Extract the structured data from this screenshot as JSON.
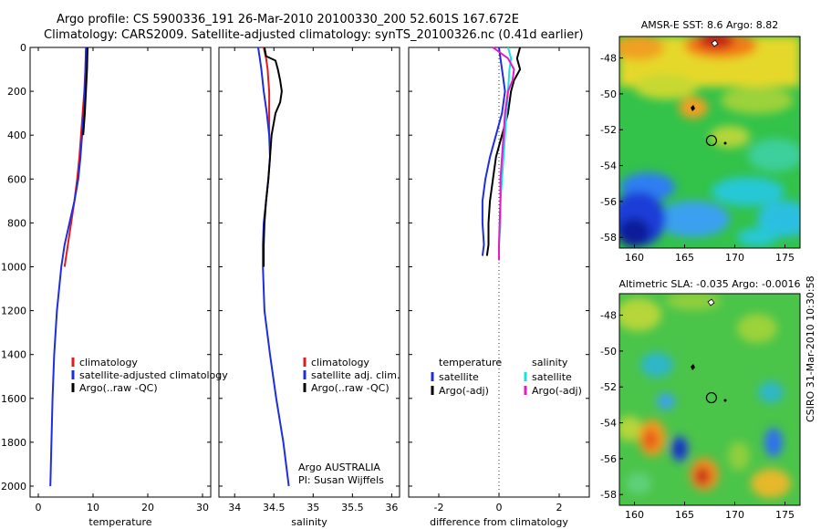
{
  "header": {
    "line1": "Argo profile: CS 5900336_191 26-Mar-2010 20100330_200 52.601S 167.672E",
    "line2": "Climatology: CARS2009. Satellite-adjusted climatology: synTS_20100326.nc (0.41d earlier)"
  },
  "chart_data": [
    {
      "type": "line",
      "name": "temperature",
      "xlabel": "temperature",
      "ylabel": "",
      "xlim": [
        -1.5,
        31.5
      ],
      "ylim": [
        2050,
        0
      ],
      "xticks": [
        0,
        10,
        20,
        30
      ],
      "yticks": [
        0,
        200,
        400,
        600,
        800,
        1000,
        1200,
        1400,
        1600,
        1800,
        2000
      ],
      "legend": [
        {
          "label": "climatology",
          "color": "#e41a1c"
        },
        {
          "label": "satellite-adjusted climatology",
          "color": "#1f2de0"
        },
        {
          "label": "Argo(..raw -QC)",
          "color": "#000000"
        }
      ],
      "series": [
        {
          "name": "climatology",
          "color": "#e41a1c",
          "depth": [
            0,
            100,
            200,
            300,
            400,
            500,
            600,
            700,
            800,
            900,
            1000
          ],
          "values": [
            8.8,
            8.6,
            8.4,
            8.1,
            7.8,
            7.5,
            7.1,
            6.6,
            6.0,
            5.4,
            4.8
          ]
        },
        {
          "name": "satellite-adjusted",
          "color": "#1f2de0",
          "depth": [
            0,
            100,
            200,
            300,
            400,
            500,
            600,
            700,
            800,
            900,
            1000,
            1200,
            1400,
            1600,
            1800,
            2000
          ],
          "values": [
            8.7,
            8.6,
            8.5,
            8.3,
            8.0,
            7.7,
            7.3,
            6.6,
            5.7,
            4.8,
            4.2,
            3.4,
            2.9,
            2.6,
            2.4,
            2.2
          ]
        },
        {
          "name": "Argo",
          "color": "#000000",
          "depth": [
            0,
            100,
            200,
            300,
            400
          ],
          "values": [
            9.0,
            8.9,
            8.7,
            8.5,
            8.2
          ]
        }
      ]
    },
    {
      "type": "line",
      "name": "salinity",
      "xlabel": "salinity",
      "xlim": [
        33.8,
        36.1
      ],
      "ylim": [
        2050,
        0
      ],
      "xticks": [
        34,
        34.5,
        35,
        35.5,
        36
      ],
      "xticklabels": [
        "34",
        "34.5",
        "35",
        "35.5",
        "36"
      ],
      "legend": [
        {
          "label": "climatology",
          "color": "#e41a1c"
        },
        {
          "label": "satellite adj. clim.",
          "color": "#1f2de0"
        },
        {
          "label": "Argo(..raw -QC)",
          "color": "#000000"
        }
      ],
      "note1": "Argo AUSTRALIA",
      "note2": "PI: Susan Wijffels",
      "series": [
        {
          "name": "climatology",
          "color": "#e41a1c",
          "depth": [
            0,
            50,
            100,
            150,
            200,
            300,
            400
          ],
          "values": [
            34.37,
            34.4,
            34.42,
            34.43,
            34.44,
            34.44,
            34.44
          ]
        },
        {
          "name": "satellite-adjusted",
          "color": "#1f2de0",
          "depth": [
            0,
            50,
            100,
            200,
            300,
            400,
            500,
            600,
            700,
            800,
            900,
            1000,
            1200,
            1400,
            1600,
            1800,
            2000
          ],
          "values": [
            34.3,
            34.32,
            34.34,
            34.37,
            34.41,
            34.44,
            34.45,
            34.43,
            34.4,
            34.37,
            34.36,
            34.36,
            34.38,
            34.45,
            34.53,
            34.62,
            34.69
          ]
        },
        {
          "name": "Argo",
          "color": "#000000",
          "depth": [
            0,
            40,
            60,
            100,
            150,
            200,
            250,
            300,
            400,
            500,
            600,
            700,
            800,
            900,
            1000
          ],
          "values": [
            34.38,
            34.4,
            34.52,
            34.55,
            34.58,
            34.6,
            34.58,
            34.52,
            34.47,
            34.45,
            34.43,
            34.4,
            34.38,
            34.37,
            34.37
          ]
        }
      ]
    },
    {
      "type": "line",
      "name": "difference",
      "xlabel": "difference from climatology",
      "xlim": [
        -3.0,
        3.0
      ],
      "ylim": [
        2050,
        0
      ],
      "xticks": [
        -2,
        0,
        2
      ],
      "xticklabels": [
        "-2",
        "0",
        "2"
      ],
      "legend_headers": [
        "temperature",
        "salinity"
      ],
      "legend": [
        {
          "label": "satellite",
          "color": "#1f2de0"
        },
        {
          "label": "Argo(-adj)",
          "color": "#000000"
        },
        {
          "label": "satellite",
          "color": "#19e0e6"
        },
        {
          "label": "Argo(-adj)",
          "color": "#e619c8"
        }
      ],
      "series": [
        {
          "name": "temperature satellite",
          "color": "#1f2de0",
          "depth": [
            0,
            50,
            100,
            150,
            200,
            300,
            400,
            500,
            600,
            700,
            800,
            900,
            950
          ],
          "values": [
            0.0,
            0.05,
            0.1,
            0.15,
            0.2,
            0.1,
            -0.1,
            -0.3,
            -0.45,
            -0.55,
            -0.55,
            -0.5,
            -0.55
          ]
        },
        {
          "name": "temperature Argo",
          "color": "#000000",
          "depth": [
            0,
            50,
            100,
            150,
            200,
            300,
            400,
            500,
            600,
            700,
            800,
            900,
            950
          ],
          "values": [
            0.7,
            0.6,
            0.7,
            0.5,
            0.4,
            0.3,
            0.1,
            -0.1,
            -0.2,
            -0.3,
            -0.35,
            -0.35,
            -0.4
          ]
        },
        {
          "name": "salinity satellite",
          "color": "#19e0e6",
          "depth": [
            0,
            50,
            100,
            200,
            300,
            400,
            500,
            600,
            700,
            800,
            900,
            970
          ],
          "values": [
            0.3,
            0.4,
            0.35,
            0.3,
            0.25,
            0.2,
            0.15,
            0.1,
            0.05,
            0.05,
            0.0,
            0.0
          ]
        },
        {
          "name": "salinity Argo",
          "color": "#e619c8",
          "depth": [
            0,
            50,
            100,
            150,
            200,
            300,
            400,
            500,
            600,
            700,
            800,
            900,
            970
          ],
          "values": [
            -0.2,
            0.3,
            0.5,
            0.45,
            0.3,
            0.2,
            0.15,
            0.1,
            0.05,
            0.05,
            0.02,
            0.0,
            0.0
          ]
        }
      ]
    },
    {
      "type": "heatmap",
      "name": "sst_map",
      "title": "AMSR-E SST: 8.6 Argo: 8.82",
      "xlim": [
        158.5,
        176.5
      ],
      "ylim": [
        -58.6,
        -46.8
      ],
      "xticks": [
        160,
        165,
        170,
        175
      ],
      "yticks": [
        -48,
        -50,
        -52,
        -54,
        -56,
        -58
      ],
      "yticklabels": [
        "-48",
        "-50",
        "-52",
        "-54",
        "-56",
        "-58"
      ],
      "profile": {
        "lon": 167.672,
        "lat": -52.601
      }
    },
    {
      "type": "heatmap",
      "name": "sla_map",
      "title": "Altimetric SLA: -0.035 Argo: -0.0016",
      "xlim": [
        158.5,
        176.5
      ],
      "ylim": [
        -58.6,
        -46.8
      ],
      "xticks": [
        160,
        165,
        170,
        175
      ],
      "yticks": [
        -48,
        -50,
        -52,
        -54,
        -56,
        -58
      ],
      "yticklabels": [
        "-48",
        "-50",
        "-52",
        "-54",
        "-56",
        "-58"
      ],
      "profile": {
        "lon": 167.672,
        "lat": -52.601
      }
    }
  ],
  "footer": {
    "stamp": "CSIRO 31-Mar-2010 10:30:58"
  }
}
